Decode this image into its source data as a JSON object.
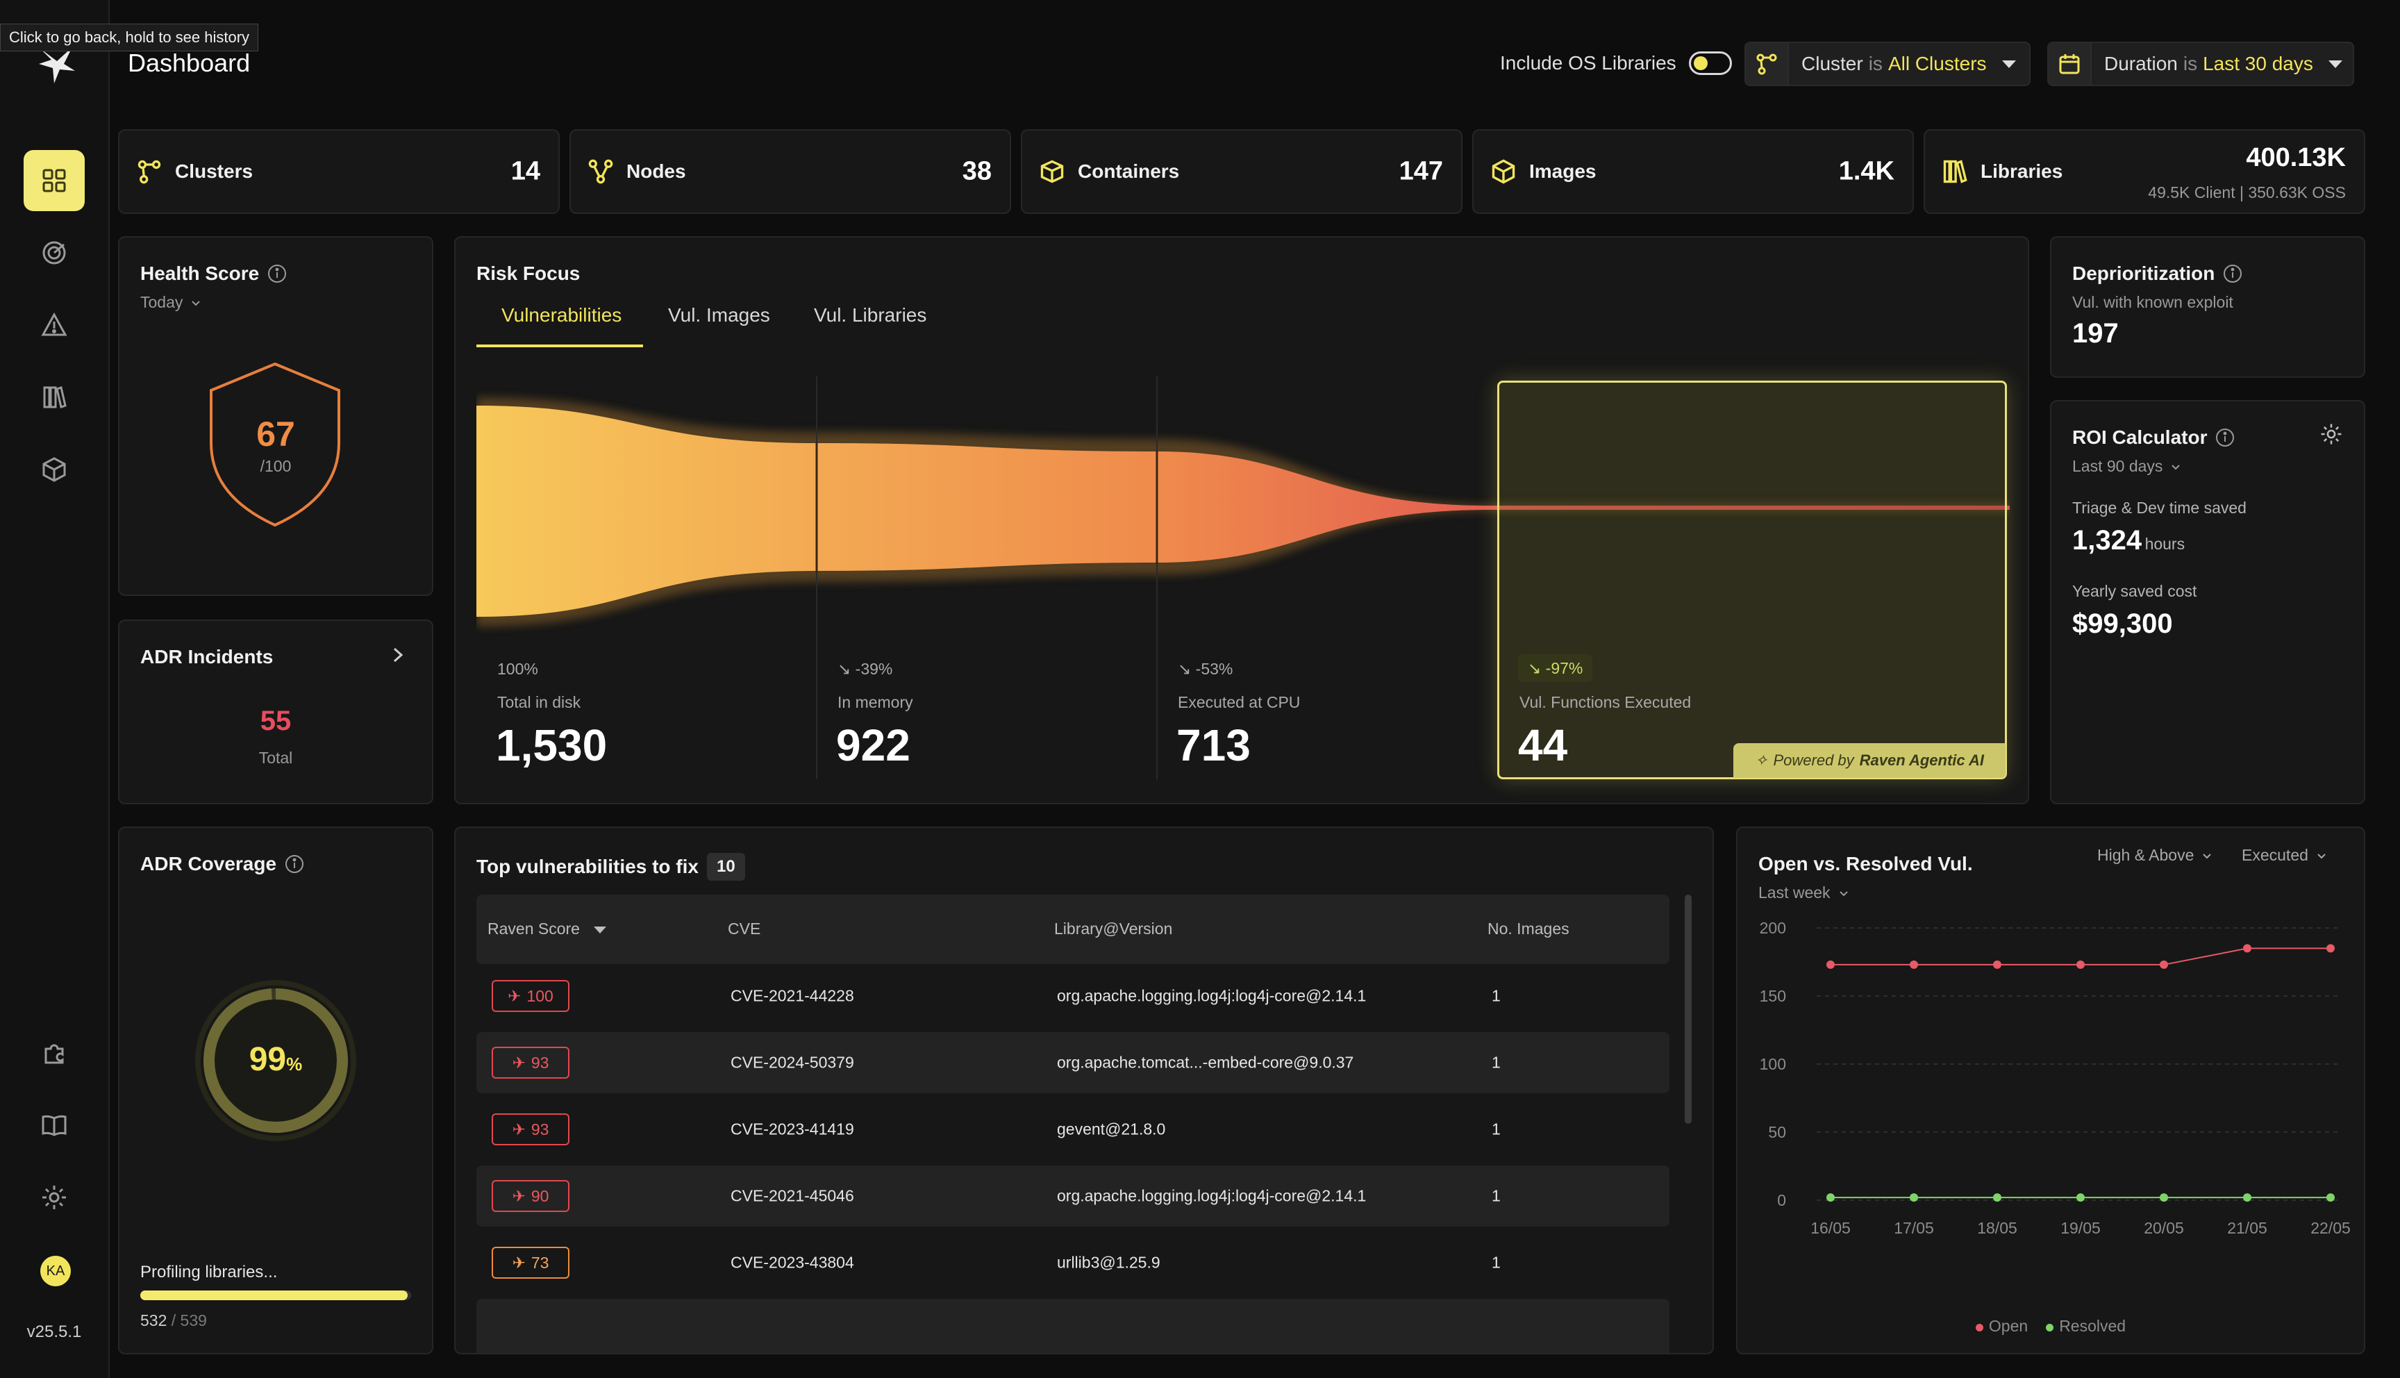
{
  "tooltip": "Click to go back, hold to see history",
  "header": {
    "title": "Dashboard",
    "os_toggle_label": "Include OS Libraries",
    "cluster_filter": {
      "label": "Cluster",
      "is": "is",
      "value": "All Clusters"
    },
    "duration_filter": {
      "label": "Duration",
      "is": "is",
      "value": "Last 30 days"
    }
  },
  "sidebar": {
    "items": [
      {
        "icon": "dashboard-grid-icon",
        "active": true
      },
      {
        "icon": "target-icon"
      },
      {
        "icon": "warning-triangle-icon"
      },
      {
        "icon": "library-books-icon"
      },
      {
        "icon": "cube-icon"
      }
    ],
    "bottom_items": [
      {
        "icon": "puzzle-icon"
      },
      {
        "icon": "book-icon"
      },
      {
        "icon": "gear-icon"
      }
    ],
    "avatar_initials": "KA",
    "version": "v25.5.1"
  },
  "stats": [
    {
      "label": "Clusters",
      "value": "14",
      "icon": "cluster-icon"
    },
    {
      "label": "Nodes",
      "value": "38",
      "icon": "nodes-icon"
    },
    {
      "label": "Containers",
      "value": "147",
      "icon": "container-box-icon"
    },
    {
      "label": "Images",
      "value": "1.4K",
      "icon": "image-cube-icon"
    },
    {
      "label": "Libraries",
      "value": "400.13K",
      "sub": "49.5K Client | 350.63K OSS",
      "icon": "library-icon"
    }
  ],
  "health": {
    "title": "Health Score",
    "period": "Today",
    "score": "67",
    "max": "/100"
  },
  "adr_incidents": {
    "title": "ADR Incidents",
    "value": "55",
    "label": "Total"
  },
  "adr_coverage": {
    "title": "ADR Coverage",
    "percent": "99",
    "percent_sign": "%",
    "progress_label": "Profiling libraries...",
    "done": "532",
    "total": "/ 539",
    "progress_fraction": 0.987
  },
  "risk_focus": {
    "title": "Risk Focus",
    "tabs": [
      "Vulnerabilities",
      "Vul. Images",
      "Vul. Libraries"
    ],
    "stages": [
      {
        "change": "100%",
        "label": "Total in disk",
        "value": "1,530"
      },
      {
        "change": "-39%",
        "label": "In memory",
        "value": "922"
      },
      {
        "change": "-53%",
        "label": "Executed at CPU",
        "value": "713"
      },
      {
        "change": "-97%",
        "label": "Vul. Functions Executed",
        "value": "44"
      }
    ],
    "powered_by": "Powered by",
    "powered_brand": "Raven Agentic AI"
  },
  "deprioritization": {
    "title": "Deprioritization",
    "sub": "Vul. with known exploit",
    "value": "197"
  },
  "roi": {
    "title": "ROI Calculator",
    "period": "Last 90 days",
    "triage_label": "Triage & Dev time saved",
    "triage_value": "1,324",
    "triage_unit": "hours",
    "cost_label": "Yearly saved cost",
    "cost_value": "$99,300"
  },
  "top_vulns": {
    "title": "Top vulnerabilities to fix",
    "count": "10",
    "columns": [
      "Raven Score",
      "CVE",
      "Library@Version",
      "No. Images"
    ],
    "rows": [
      {
        "score": "100",
        "cve": "CVE-2021-44228",
        "library": "org.apache.logging.log4j:log4j-core@2.14.1",
        "images": "1",
        "severity": "critical"
      },
      {
        "score": "93",
        "cve": "CVE-2024-50379",
        "library": "org.apache.tomcat...-embed-core@9.0.37",
        "images": "1",
        "severity": "critical"
      },
      {
        "score": "93",
        "cve": "CVE-2023-41419",
        "library": "gevent@21.8.0",
        "images": "1",
        "severity": "critical"
      },
      {
        "score": "90",
        "cve": "CVE-2021-45046",
        "library": "org.apache.logging.log4j:log4j-core@2.14.1",
        "images": "1",
        "severity": "critical"
      },
      {
        "score": "73",
        "cve": "CVE-2023-43804",
        "library": "urllib3@1.25.9",
        "images": "1",
        "severity": "high"
      }
    ]
  },
  "open_resolved": {
    "title": "Open vs. Resolved Vul.",
    "period": "Last week",
    "filter_severity": "High & Above",
    "filter_state": "Executed",
    "colors": {
      "open": "#e85a66",
      "resolved": "#7fd36b"
    }
  },
  "chart_data": {
    "type": "line",
    "x": [
      "16/05",
      "17/05",
      "18/05",
      "19/05",
      "20/05",
      "21/05",
      "22/05"
    ],
    "series": [
      {
        "name": "Open",
        "values": [
          173,
          173,
          173,
          173,
          173,
          185,
          185
        ]
      },
      {
        "name": "Resolved",
        "values": [
          2,
          2,
          2,
          2,
          2,
          2,
          2
        ]
      }
    ],
    "yticks": [
      "200",
      "150",
      "100",
      "50",
      "0"
    ],
    "ylim": [
      0,
      200
    ],
    "grid": true,
    "legend": "bottom"
  }
}
